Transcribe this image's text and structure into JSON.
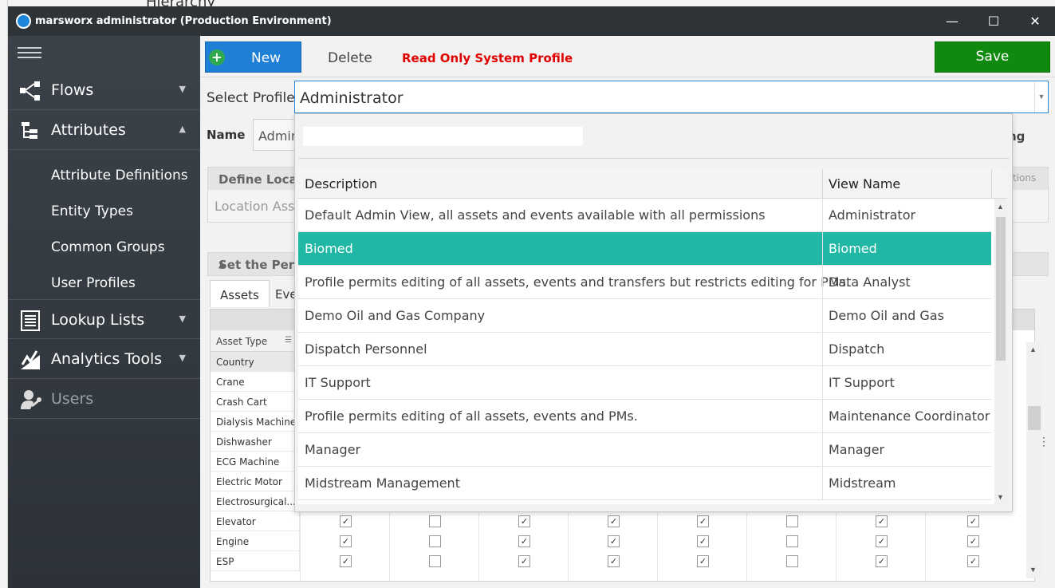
{
  "background": {
    "title": "Hierarchy"
  },
  "window": {
    "title": "marsworx administrator (Production Environment)",
    "minimize": "—",
    "maximize": "☐",
    "close": "✕"
  },
  "sidebar": {
    "items": [
      {
        "label": "Flows",
        "icon": "flows-icon",
        "expanded": false
      },
      {
        "label": "Attributes",
        "icon": "attributes-icon",
        "expanded": true
      },
      {
        "label": "Lookup Lists",
        "icon": "lookup-lists-icon",
        "expanded": false
      },
      {
        "label": "Analytics Tools",
        "icon": "analytics-tools-icon",
        "expanded": false
      },
      {
        "label": "Users",
        "icon": "users-icon",
        "expanded": false
      }
    ],
    "subitems": [
      "Attribute Definitions",
      "Entity Types",
      "Common Groups",
      "User Profiles"
    ]
  },
  "toolbar": {
    "new_label": "New",
    "delete_label": "Delete",
    "readonly_label": "Read Only System Profile",
    "save_label": "Save"
  },
  "profile": {
    "select_label": "Select Profile",
    "selected": "Administrator",
    "name_label": "Name",
    "name_value": "Admin",
    "right_partial": "ng"
  },
  "sections": {
    "define_locations": "Define Locati",
    "location_asset": "Location Asse",
    "locations_right": "cations",
    "set_permissions": "Set the Perm"
  },
  "tabs": [
    "Assets",
    "Eve"
  ],
  "grid": {
    "column_header": "Asset Type",
    "group": "Country",
    "rows": [
      {
        "label": "Crane"
      },
      {
        "label": "Crash Cart"
      },
      {
        "label": "Dialysis Machine"
      },
      {
        "label": "Dishwasher"
      },
      {
        "label": "ECG Machine"
      },
      {
        "label": "Electric Motor"
      },
      {
        "label": "Electrosurgical..."
      },
      {
        "label": "Elevator",
        "checks": [
          true,
          false,
          true,
          true,
          true,
          false,
          true,
          true
        ]
      },
      {
        "label": "Engine",
        "checks": [
          true,
          false,
          true,
          true,
          true,
          false,
          true,
          true
        ]
      },
      {
        "label": "ESP",
        "checks": [
          true,
          false,
          true,
          true,
          true,
          false,
          true,
          true
        ]
      }
    ]
  },
  "dropdown": {
    "search_value": "",
    "columns": [
      "Description",
      "View Name"
    ],
    "rows": [
      {
        "description": "Default Admin View, all assets and events available with all permissions",
        "view": "Administrator",
        "selected": false
      },
      {
        "description": "Biomed",
        "view": "Biomed",
        "selected": true
      },
      {
        "description": "Profile permits editing of all assets, events and transfers but restricts editing for PMs.",
        "view": "Data Analyst",
        "selected": false
      },
      {
        "description": "Demo Oil and Gas Company",
        "view": "Demo Oil and Gas",
        "selected": false
      },
      {
        "description": "Dispatch Personnel",
        "view": "Dispatch",
        "selected": false
      },
      {
        "description": "IT Support",
        "view": "IT Support",
        "selected": false
      },
      {
        "description": "Profile permits editing of all assets, events and PMs.",
        "view": "Maintenance Coordinator",
        "selected": false
      },
      {
        "description": "Manager",
        "view": "Manager",
        "selected": false
      },
      {
        "description": "Midstream Management",
        "view": "Midstream",
        "selected": false
      }
    ]
  },
  "colors": {
    "selected_row": "#20b8a4",
    "new_button": "#1e7fd6",
    "save_button": "#0f8a0f",
    "readonly_text": "#e00000",
    "sidebar": "#353b41"
  }
}
